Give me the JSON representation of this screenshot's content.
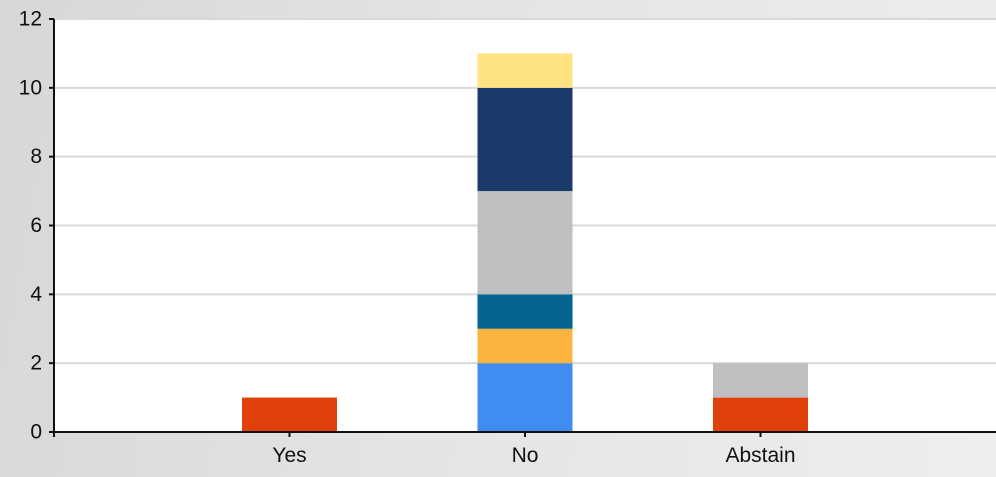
{
  "chart_data": {
    "type": "bar",
    "stacked": true,
    "title": "",
    "xlabel": "",
    "ylabel": "",
    "categories": [
      "Yes",
      "No",
      "Abstain"
    ],
    "ylim": [
      0,
      12
    ],
    "yticks": [
      0,
      2,
      4,
      6,
      8,
      10,
      12
    ],
    "grid": true,
    "legend": "none",
    "series": [
      {
        "color": "#418cf0",
        "values": [
          0,
          2,
          0
        ]
      },
      {
        "color": "#fcb441",
        "values": [
          0,
          1,
          0
        ]
      },
      {
        "color": "#e0400a",
        "values": [
          1,
          0,
          1
        ]
      },
      {
        "color": "#056492",
        "values": [
          0,
          1,
          0
        ]
      },
      {
        "color": "#bfbfbf",
        "values": [
          0,
          3,
          1
        ]
      },
      {
        "color": "#1a3b69",
        "values": [
          0,
          3,
          0
        ]
      },
      {
        "color": "#ffe382",
        "values": [
          0,
          1,
          0
        ]
      }
    ]
  }
}
